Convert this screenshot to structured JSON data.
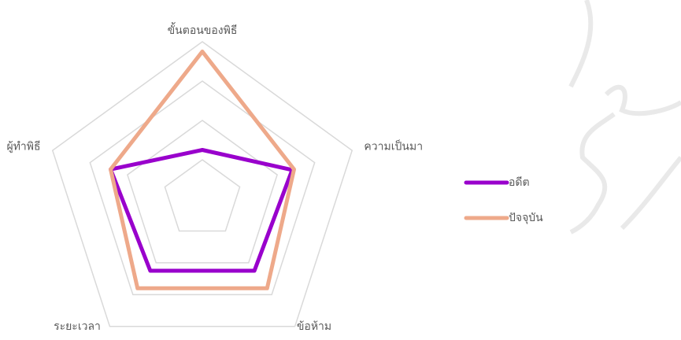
{
  "chart_data": {
    "type": "radar",
    "categories": [
      "ขั้นตอนของพิธี",
      "ความเป็นมา",
      "ข้อห้าม",
      "ระยะเวลา",
      "ผู้ทำพิธี"
    ],
    "series": [
      {
        "name": "อดีต",
        "color": "#9900cc",
        "values": [
          1.25,
          2.4,
          2.25,
          2.25,
          2.45
        ]
      },
      {
        "name": "ปัจจุบัน",
        "color": "#eea98a",
        "values": [
          3.75,
          2.45,
          2.8,
          2.8,
          2.45
        ]
      }
    ],
    "rlim": [
      0,
      4
    ],
    "rticks": [
      1,
      2,
      3,
      4
    ],
    "grid": true,
    "legend": "right"
  }
}
